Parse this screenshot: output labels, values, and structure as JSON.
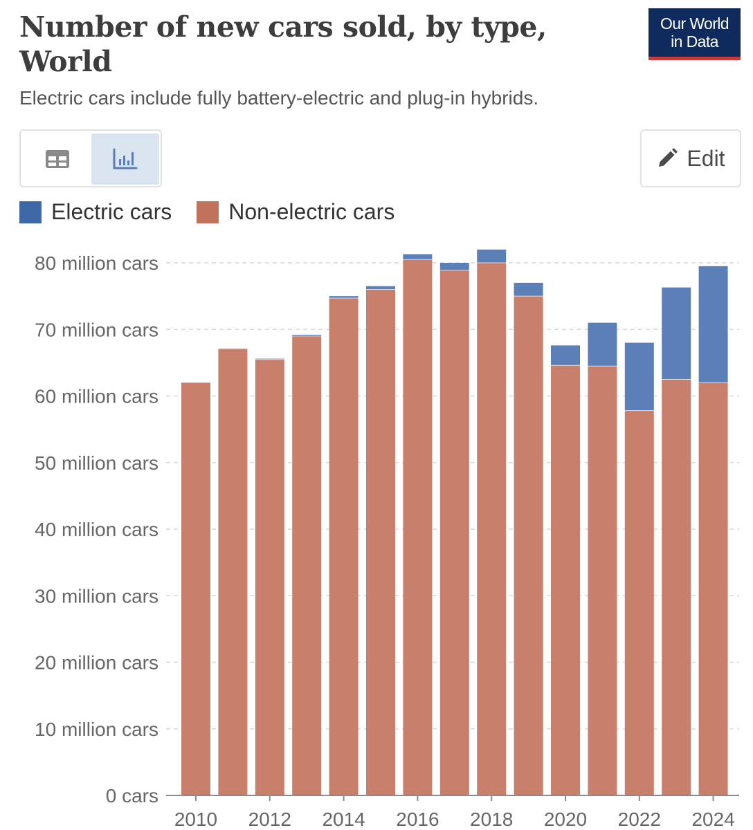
{
  "header": {
    "title": "Number of new cars sold, by type, World",
    "subtitle": "Electric cars include fully battery-electric and plug-in hybrids."
  },
  "logo": {
    "line1": "Our World",
    "line2": "in Data"
  },
  "controls": {
    "table_icon": "table-icon",
    "chart_icon": "bar-chart-icon",
    "edit_label": "Edit",
    "edit_icon": "pencil-icon"
  },
  "colors": {
    "electric": "#5b80b8",
    "non_electric": "#c8806c",
    "accent": "#0f2a5c"
  },
  "chart_data": {
    "type": "bar",
    "stacked": true,
    "title": "Number of new cars sold, by type, World",
    "categories": [
      "2010",
      "2011",
      "2012",
      "2013",
      "2014",
      "2015",
      "2016",
      "2017",
      "2018",
      "2019",
      "2020",
      "2021",
      "2022",
      "2023",
      "2024"
    ],
    "x_tick_labels": [
      "2010",
      "2012",
      "2014",
      "2016",
      "2018",
      "2020",
      "2022",
      "2024"
    ],
    "series": [
      {
        "name": "Non-electric cars",
        "color": "#c8806c",
        "values": [
          62.0,
          67.1,
          65.5,
          69.0,
          74.7,
          76.0,
          80.5,
          78.9,
          80.0,
          75.0,
          64.6,
          64.5,
          57.8,
          62.5,
          62.0
        ]
      },
      {
        "name": "Electric cars",
        "color": "#5b80b8",
        "values": [
          0.0,
          0.05,
          0.1,
          0.2,
          0.3,
          0.5,
          0.8,
          1.1,
          2.0,
          2.0,
          3.0,
          6.5,
          10.2,
          13.8,
          17.5
        ]
      }
    ],
    "legend_order": [
      "Electric cars",
      "Non-electric cars"
    ],
    "y_ticks": [
      0,
      10,
      20,
      30,
      40,
      50,
      60,
      70,
      80
    ],
    "y_tick_labels": [
      "0 cars",
      "10 million cars",
      "20 million cars",
      "30 million cars",
      "40 million cars",
      "50 million cars",
      "60 million cars",
      "70 million cars",
      "80 million cars"
    ],
    "ylim": [
      0,
      82
    ],
    "y_unit": "million cars",
    "grid": "horizontal-dashed",
    "legend_position": "top-left"
  }
}
